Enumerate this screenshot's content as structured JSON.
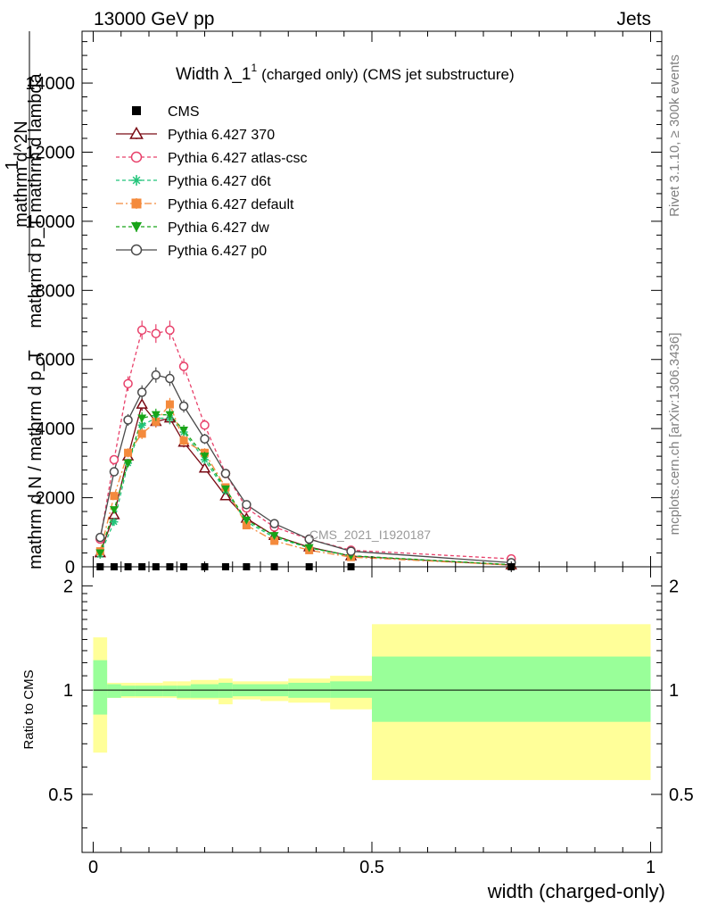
{
  "header": {
    "left": "13000 GeV pp",
    "right": "Jets"
  },
  "side_labels": {
    "rivet": "Rivet 3.1.10, ≥ 300k events",
    "mcplots": "mcplots.cern.ch [arXiv:1306.3436]"
  },
  "watermark": "CMS_2021_I1920187",
  "chart_data": {
    "type": "scatter",
    "title": "Width λ_1",
    "title_sup": "1",
    "title_suffix": "(charged only) (CMS jet substructure)",
    "ylabel_parts": [
      "1",
      "mathrm d N / mathrm d p_T",
      "mathrm d^2N",
      "mathrm d p_T mathrm d lambda"
    ],
    "xlabel": "width (charged-only)",
    "xlim": [
      -0.02,
      1.02
    ],
    "ylim": [
      0,
      15500
    ],
    "yticks": [
      0,
      2000,
      4000,
      6000,
      8000,
      10000,
      12000,
      14000
    ],
    "yticklabels": [
      "0",
      "2000",
      "4000",
      "6000",
      "8000",
      "10000",
      "12000",
      "14000"
    ],
    "x_bins": [
      0,
      0.025,
      0.05,
      0.075,
      0.1,
      0.125,
      0.15,
      0.175,
      0.225,
      0.25,
      0.3,
      0.35,
      0.425,
      0.5,
      1.0
    ],
    "x": [
      0.0125,
      0.0375,
      0.0625,
      0.0875,
      0.1125,
      0.1375,
      0.1625,
      0.2,
      0.2375,
      0.275,
      0.325,
      0.3875,
      0.4625,
      0.75
    ],
    "series": [
      {
        "name": "CMS",
        "color": "#000000",
        "marker": "square",
        "values": [
          0,
          0,
          0,
          0,
          0,
          0,
          0,
          0,
          0,
          0,
          0,
          0,
          0,
          0
        ]
      },
      {
        "name": "Pythia 6.427 370",
        "color": "#7a0a14",
        "marker": "triangle-open",
        "dash": "",
        "values": [
          400,
          1500,
          3200,
          4700,
          4200,
          4300,
          3600,
          2850,
          2050,
          1400,
          900,
          570,
          310,
          50
        ]
      },
      {
        "name": "Pythia 6.427 atlas-csc",
        "color": "#e8406a",
        "marker": "circle-open",
        "dash": "4,3",
        "values": [
          800,
          3100,
          5300,
          6850,
          6750,
          6850,
          5800,
          4100,
          2700,
          1700,
          1150,
          800,
          480,
          230
        ]
      },
      {
        "name": "Pythia 6.427 d6t",
        "color": "#22c47a",
        "marker": "star",
        "dash": "4,3",
        "values": [
          350,
          1300,
          3000,
          4100,
          4300,
          4300,
          3900,
          3100,
          2200,
          1300,
          850,
          550,
          310,
          60
        ]
      },
      {
        "name": "Pythia 6.427 default",
        "color": "#f48a3c",
        "marker": "square",
        "dash": "8,3,2,3",
        "values": [
          450,
          2050,
          3300,
          3850,
          4200,
          4700,
          3650,
          3300,
          2300,
          1200,
          750,
          480,
          280,
          50
        ]
      },
      {
        "name": "Pythia 6.427 dw",
        "color": "#18a418",
        "marker": "triangle-down",
        "dash": "4,3",
        "values": [
          400,
          1650,
          3000,
          4300,
          4400,
          4400,
          3950,
          3200,
          2250,
          1350,
          900,
          550,
          320,
          60
        ]
      },
      {
        "name": "Pythia 6.427 p0",
        "color": "#4a4a4a",
        "marker": "circle-open",
        "dash": "",
        "values": [
          850,
          2750,
          4250,
          5050,
          5550,
          5450,
          4650,
          3700,
          2700,
          1800,
          1250,
          800,
          450,
          120
        ]
      }
    ],
    "ratio": {
      "ylabel": "Ratio to CMS",
      "ylim": [
        0.34,
        2.27
      ],
      "yticks": [
        0.5,
        1,
        2
      ],
      "yticklabels": [
        "0.5",
        "1",
        "2"
      ],
      "xticks": [
        0,
        0.5,
        1
      ],
      "xticklabels": [
        "0",
        "0.5",
        "1"
      ],
      "inner_band": [
        [
          0.85,
          1.22
        ],
        [
          0.95,
          1.04
        ],
        [
          0.96,
          1.03
        ],
        [
          0.96,
          1.03
        ],
        [
          0.96,
          1.03
        ],
        [
          0.96,
          1.03
        ],
        [
          0.95,
          1.03
        ],
        [
          0.95,
          1.04
        ],
        [
          0.95,
          1.05
        ],
        [
          0.96,
          1.04
        ],
        [
          0.96,
          1.04
        ],
        [
          0.95,
          1.05
        ],
        [
          0.95,
          1.06
        ],
        [
          0.81,
          1.25
        ]
      ],
      "outer_band": [
        [
          0.66,
          1.42
        ],
        [
          0.95,
          1.05
        ],
        [
          0.95,
          1.05
        ],
        [
          0.95,
          1.05
        ],
        [
          0.95,
          1.05
        ],
        [
          0.95,
          1.06
        ],
        [
          0.94,
          1.06
        ],
        [
          0.94,
          1.07
        ],
        [
          0.91,
          1.08
        ],
        [
          0.94,
          1.06
        ],
        [
          0.93,
          1.06
        ],
        [
          0.92,
          1.08
        ],
        [
          0.88,
          1.1
        ],
        [
          0.55,
          1.55
        ]
      ]
    }
  }
}
